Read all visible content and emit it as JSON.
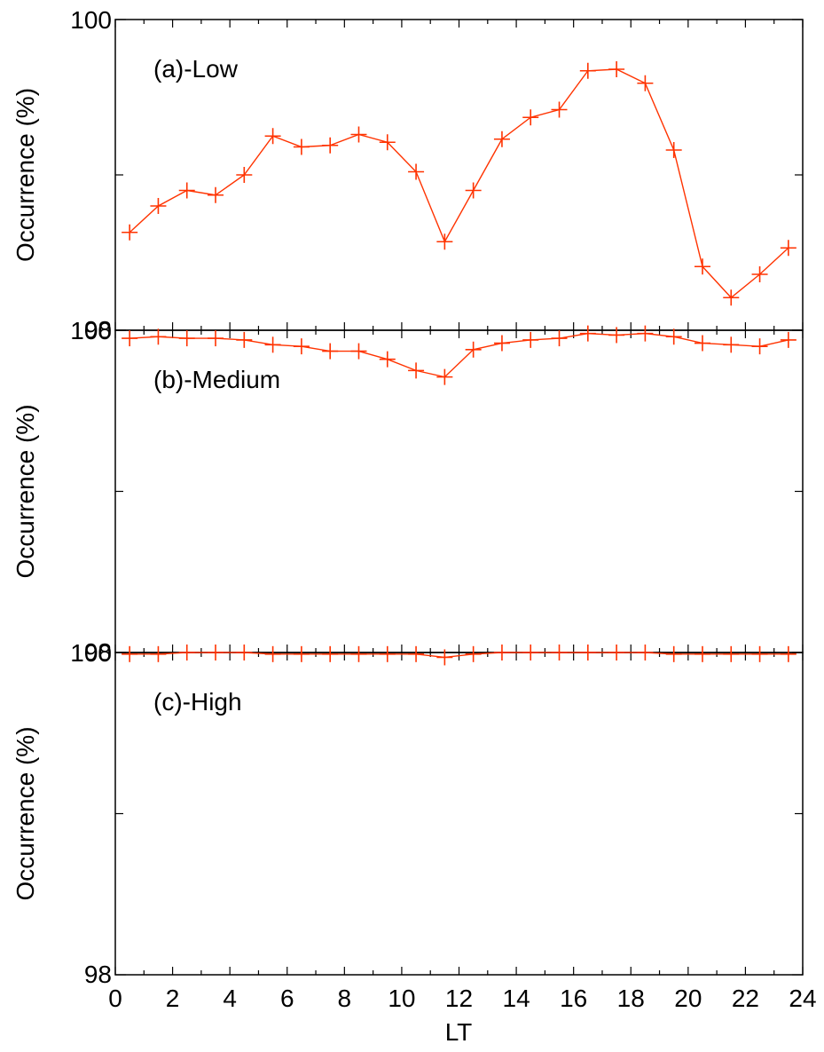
{
  "chart_data": {
    "type": "line",
    "xlabel": "LT",
    "ylabel": "Occurrence (%)",
    "xlim": [
      0,
      24
    ],
    "x_ticks": [
      "0",
      "2",
      "4",
      "6",
      "8",
      "10",
      "12",
      "14",
      "16",
      "18",
      "20",
      "22",
      "24"
    ],
    "series_color": "#ff3300",
    "marker": "plus",
    "panels": [
      {
        "label": "(a)-Low",
        "ylim": [
          98,
          100
        ],
        "y_ticks": [
          "98",
          "100"
        ],
        "x": [
          0.5,
          1.5,
          2.5,
          3.5,
          4.5,
          5.5,
          6.5,
          7.5,
          8.5,
          9.5,
          10.5,
          11.5,
          12.5,
          13.5,
          14.5,
          15.5,
          16.5,
          17.5,
          18.5,
          19.5,
          20.5,
          21.5,
          22.5,
          23.5
        ],
        "values": [
          98.63,
          98.8,
          98.9,
          98.87,
          99.0,
          99.25,
          99.18,
          99.19,
          99.26,
          99.21,
          99.02,
          98.57,
          98.9,
          99.23,
          99.37,
          99.42,
          99.67,
          99.68,
          99.59,
          99.16,
          98.41,
          98.21,
          98.36,
          98.53
        ]
      },
      {
        "label": "(b)-Medium",
        "ylim": [
          98,
          100
        ],
        "y_ticks": [
          "98",
          "100"
        ],
        "x": [
          0.5,
          1.5,
          2.5,
          3.5,
          4.5,
          5.5,
          6.5,
          7.5,
          8.5,
          9.5,
          10.5,
          11.5,
          12.5,
          13.5,
          14.5,
          15.5,
          16.5,
          17.5,
          18.5,
          19.5,
          20.5,
          21.5,
          22.5,
          23.5
        ],
        "values": [
          99.95,
          99.96,
          99.95,
          99.95,
          99.94,
          99.91,
          99.9,
          99.87,
          99.87,
          99.82,
          99.75,
          99.71,
          99.88,
          99.92,
          99.94,
          99.95,
          99.98,
          99.97,
          99.98,
          99.96,
          99.92,
          99.91,
          99.9,
          99.94
        ]
      },
      {
        "label": "(c)-High",
        "ylim": [
          98,
          100
        ],
        "y_ticks": [
          "98",
          "100"
        ],
        "x": [
          0.5,
          1.5,
          2.5,
          3.5,
          4.5,
          5.5,
          6.5,
          7.5,
          8.5,
          9.5,
          10.5,
          11.5,
          12.5,
          13.5,
          14.5,
          15.5,
          16.5,
          17.5,
          18.5,
          19.5,
          20.5,
          21.5,
          22.5,
          23.5
        ],
        "values": [
          99.99,
          99.99,
          100.0,
          100.0,
          100.0,
          99.99,
          99.99,
          99.99,
          99.99,
          99.99,
          99.99,
          99.97,
          99.99,
          100.0,
          100.0,
          100.0,
          100.0,
          100.0,
          100.0,
          99.99,
          99.99,
          99.99,
          99.99,
          99.99
        ]
      }
    ]
  }
}
